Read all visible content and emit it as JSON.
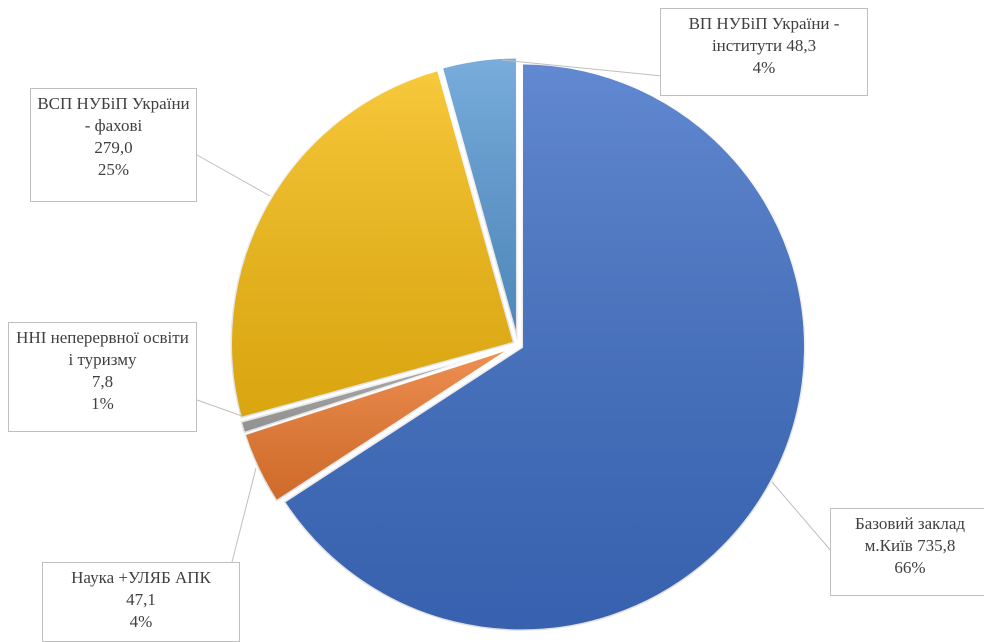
{
  "chart_data": {
    "type": "pie",
    "categories": [
      "Базовий заклад м.Київ",
      "Наука +УЛЯБ АПК",
      "ННІ неперервної освіти і туризму",
      "ВСП НУБіП України - фахові",
      "ВП НУБіП України - інститути"
    ],
    "values": [
      735.8,
      47.1,
      7.8,
      279.0,
      48.3
    ],
    "value_labels": [
      "735,8",
      "47,1",
      "7,8",
      "279,0",
      "48,3"
    ],
    "percents": [
      66,
      4,
      1,
      25,
      4
    ],
    "percent_labels": [
      "66%",
      "4%",
      "1%",
      "25%",
      "4%"
    ],
    "colors": [
      "#3f6fc6",
      "#ec7a30",
      "#a5a5a5",
      "#f7bd12",
      "#5b9bd5"
    ]
  }
}
